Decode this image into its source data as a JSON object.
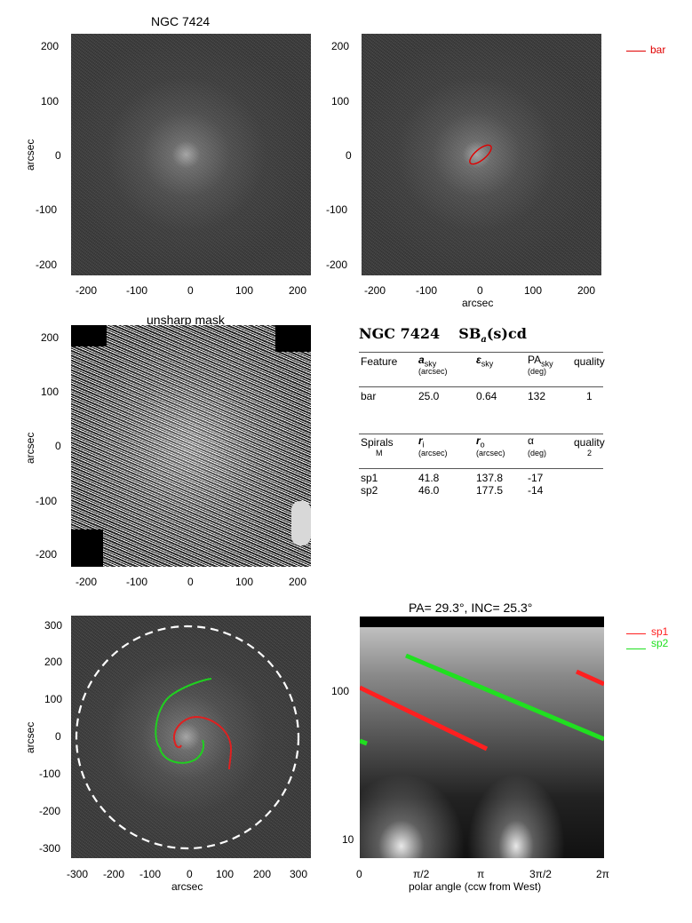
{
  "panel1": {
    "title": "NGC 7424",
    "ylabel": "arcsec",
    "xticks": [
      "-200",
      "-100",
      "0",
      "100",
      "200"
    ],
    "yticks": [
      "200",
      "100",
      "0",
      "-100",
      "-200"
    ]
  },
  "panel2": {
    "xlabel": "arcsec",
    "xticks": [
      "-200",
      "-100",
      "0",
      "100",
      "200"
    ],
    "yticks": [
      "200",
      "100",
      "0",
      "-100",
      "-200"
    ],
    "legend": [
      {
        "label": "bar",
        "color": "#e00000"
      }
    ]
  },
  "panel3": {
    "title": "unsharp mask",
    "ylabel": "arcsec",
    "xticks": [
      "-200",
      "-100",
      "0",
      "100",
      "200"
    ],
    "yticks": [
      "200",
      "100",
      "0",
      "-100",
      "-200"
    ]
  },
  "table": {
    "heading_name": "NGC 7424",
    "heading_type_pre": "SB",
    "heading_type_sub": "a",
    "heading_type_post": "(s)cd",
    "bar_header": {
      "c1": "Feature",
      "c2": "a",
      "c2sub": "sky",
      "c2unit": "(arcsec)",
      "c3": "ε",
      "c3sub": "sky",
      "c4": "PA",
      "c4sub": "sky",
      "c4unit": "(deg)",
      "c5": "quality"
    },
    "bar_row": {
      "c1": "bar",
      "c2": "25.0",
      "c3": "0.64",
      "c4": "132",
      "c5": "1"
    },
    "sp_header": {
      "c1": "Spirals",
      "c1b": "M",
      "c2": "r",
      "c2sub": "i",
      "c2unit": "(arcsec)",
      "c3": "r",
      "c3sub": "o",
      "c3unit": "(arcsec)",
      "c4": "α",
      "c4unit": "(deg)",
      "c5": "quality",
      "c5b": "2"
    },
    "sp_rows": [
      {
        "c1": "sp1",
        "c2": "41.8",
        "c3": "137.8",
        "c4": "-17"
      },
      {
        "c1": "sp2",
        "c2": "46.0",
        "c3": "177.5",
        "c4": "-14"
      }
    ]
  },
  "panel5": {
    "xlabel": "arcsec",
    "ylabel": "arcsec",
    "xticks": [
      "-300",
      "-200",
      "-100",
      "0",
      "100",
      "200",
      "300"
    ],
    "yticks": [
      "300",
      "200",
      "100",
      "0",
      "-100",
      "-200",
      "-300"
    ]
  },
  "panel6": {
    "title": "PA=  29.3°, INC=  25.3°",
    "xlabel": "polar angle (ccw from West)",
    "xticks": [
      "0",
      "π/2",
      "π",
      "3π/2",
      "2π"
    ],
    "yticks": [
      "100",
      "10"
    ],
    "legend": [
      {
        "label": "sp1",
        "color": "#ff2020"
      },
      {
        "label": "sp2",
        "color": "#20e020"
      }
    ]
  }
}
